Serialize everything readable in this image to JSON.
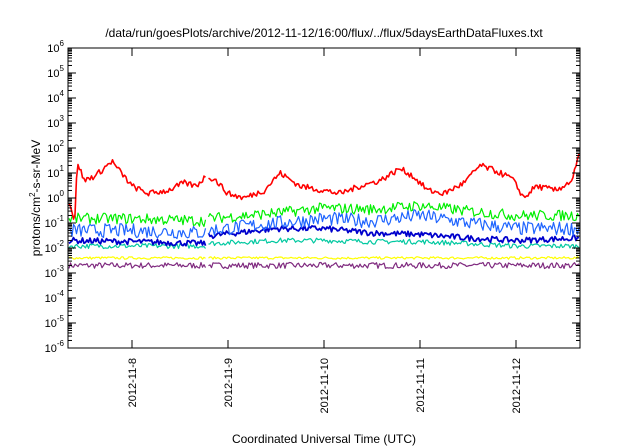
{
  "chart_data": {
    "type": "line",
    "title": "/data/run/goesPlots/archive/2012-11-12/16:00/flux/../flux/5daysEarthDataFluxes.txt",
    "xlabel": "Coordinated Universal Time (UTC)",
    "ylabel": "protons/cm2-s-sr-MeV",
    "ylabel_parts": {
      "pre": "protons/cm",
      "sup": "2",
      "post": "-s-sr-MeV"
    },
    "yscale": "log",
    "ylim": [
      1e-06,
      1000000.0
    ],
    "xlim": [
      "2012-11-07 08:00",
      "2012-11-12 16:00"
    ],
    "x_ticks": [
      "2012-11-8",
      "2012-11-9",
      "2012-11-10",
      "2012-11-11",
      "2012-11-12"
    ],
    "y_ticks": [
      {
        "base": "10",
        "exp": "6"
      },
      {
        "base": "10",
        "exp": "5"
      },
      {
        "base": "10",
        "exp": "4"
      },
      {
        "base": "10",
        "exp": "3"
      },
      {
        "base": "10",
        "exp": "2"
      },
      {
        "base": "10",
        "exp": "1"
      },
      {
        "base": "10",
        "exp": "0"
      },
      {
        "base": "10",
        "exp": "-1"
      },
      {
        "base": "10",
        "exp": "-2"
      },
      {
        "base": "10",
        "exp": "-3"
      },
      {
        "base": "10",
        "exp": "-4"
      },
      {
        "base": "10",
        "exp": "-5"
      },
      {
        "base": "10",
        "exp": "-6"
      }
    ],
    "grid": false,
    "legend": "none",
    "data_gap": {
      "start": "2012-11-08 18:30",
      "end": "2012-11-08 18:50"
    },
    "series": [
      {
        "color": "#ff0000",
        "x": [
          "2012-11-07 08:00",
          "2012-11-07 08:40",
          "2012-11-07 09:40",
          "2012-11-07 10:20",
          "2012-11-07 12:00",
          "2012-11-07 15:00",
          "2012-11-07 19:00",
          "2012-11-07 20:00",
          "2012-11-08 00:00",
          "2012-11-08 04:00",
          "2012-11-08 09:00",
          "2012-11-08 13:00",
          "2012-11-08 16:00",
          "2012-11-08 18:40",
          "2012-11-08 21:00",
          "2012-11-09 00:00",
          "2012-11-09 04:00",
          "2012-11-09 09:00",
          "2012-11-09 13:00",
          "2012-11-09 18:00",
          "2012-11-10 00:00",
          "2012-11-10 04:00",
          "2012-11-10 09:00",
          "2012-11-10 14:00",
          "2012-11-10 19:00",
          "2012-11-10 22:00",
          "2012-11-11 02:00",
          "2012-11-11 06:00",
          "2012-11-11 11:00",
          "2012-11-11 15:00",
          "2012-11-11 19:00",
          "2012-11-11 23:00",
          "2012-11-12 02:00",
          "2012-11-12 05:00",
          "2012-11-12 10:00",
          "2012-11-12 14:00",
          "2012-11-12 16:00"
        ],
        "y": [
          1.0,
          0.5,
          0.1,
          30,
          5,
          8,
          30,
          18,
          3,
          1.5,
          2,
          4,
          3,
          8,
          5,
          1.5,
          1,
          2,
          10,
          3,
          2,
          1.5,
          3,
          5,
          15,
          8,
          2,
          1.5,
          4,
          20,
          12,
          6,
          1,
          3,
          2,
          5,
          70
        ]
      },
      {
        "color": "#00ee00",
        "x": [
          "2012-11-07 08:00",
          "2012-11-08 00:00",
          "2012-11-08 18:40",
          "2012-11-08 18:50",
          "2012-11-09 12:00",
          "2012-11-10 00:00",
          "2012-11-10 12:00",
          "2012-11-11 00:00",
          "2012-11-11 12:00",
          "2012-11-12 00:00",
          "2012-11-12 16:00"
        ],
        "y": [
          0.15,
          0.15,
          0.12,
          0.15,
          0.25,
          0.4,
          0.35,
          0.5,
          0.3,
          0.2,
          0.2
        ]
      },
      {
        "color": "#1e64ff",
        "x": [
          "2012-11-07 08:00",
          "2012-11-08 00:00",
          "2012-11-08 18:40",
          "2012-11-08 18:50",
          "2012-11-09 12:00",
          "2012-11-10 00:00",
          "2012-11-10 12:00",
          "2012-11-11 00:00",
          "2012-11-11 12:00",
          "2012-11-12 00:00",
          "2012-11-12 16:00"
        ],
        "y": [
          0.05,
          0.05,
          0.04,
          0.05,
          0.1,
          0.15,
          0.12,
          0.2,
          0.1,
          0.06,
          0.06
        ]
      },
      {
        "color": "#0000cc",
        "x": [
          "2012-11-07 08:00",
          "2012-11-08 00:00",
          "2012-11-08 18:40",
          "2012-11-08 18:50",
          "2012-11-09 12:00",
          "2012-11-10 00:00",
          "2012-11-10 12:00",
          "2012-11-11 00:00",
          "2012-11-11 12:00",
          "2012-11-12 00:00",
          "2012-11-12 16:00"
        ],
        "y": [
          0.02,
          0.018,
          0.015,
          0.03,
          0.06,
          0.06,
          0.04,
          0.035,
          0.025,
          0.02,
          0.025
        ]
      },
      {
        "color": "#00c8a0",
        "x": [
          "2012-11-07 08:00",
          "2012-11-08 00:00",
          "2012-11-08 18:40",
          "2012-11-08 18:50",
          "2012-11-09 12:00",
          "2012-11-10 00:00",
          "2012-11-10 12:00",
          "2012-11-11 00:00",
          "2012-11-11 12:00",
          "2012-11-12 00:00",
          "2012-11-12 16:00"
        ],
        "y": [
          0.012,
          0.012,
          0.012,
          0.015,
          0.02,
          0.02,
          0.018,
          0.018,
          0.015,
          0.012,
          0.012
        ]
      },
      {
        "color": "#ffff00",
        "x": [
          "2012-11-07 08:00",
          "2012-11-08 18:40",
          "2012-11-08 18:50",
          "2012-11-10 00:00",
          "2012-11-11 00:00",
          "2012-11-12 16:00"
        ],
        "y": [
          0.004,
          0.004,
          0.004,
          0.004,
          0.004,
          0.004
        ]
      },
      {
        "color": "#7f2a7f",
        "x": [
          "2012-11-07 08:00",
          "2012-11-08 18:40",
          "2012-11-08 18:50",
          "2012-11-10 00:00",
          "2012-11-11 00:00",
          "2012-11-12 16:00"
        ],
        "y": [
          0.002,
          0.002,
          0.002,
          0.002,
          0.002,
          0.002
        ]
      }
    ]
  }
}
